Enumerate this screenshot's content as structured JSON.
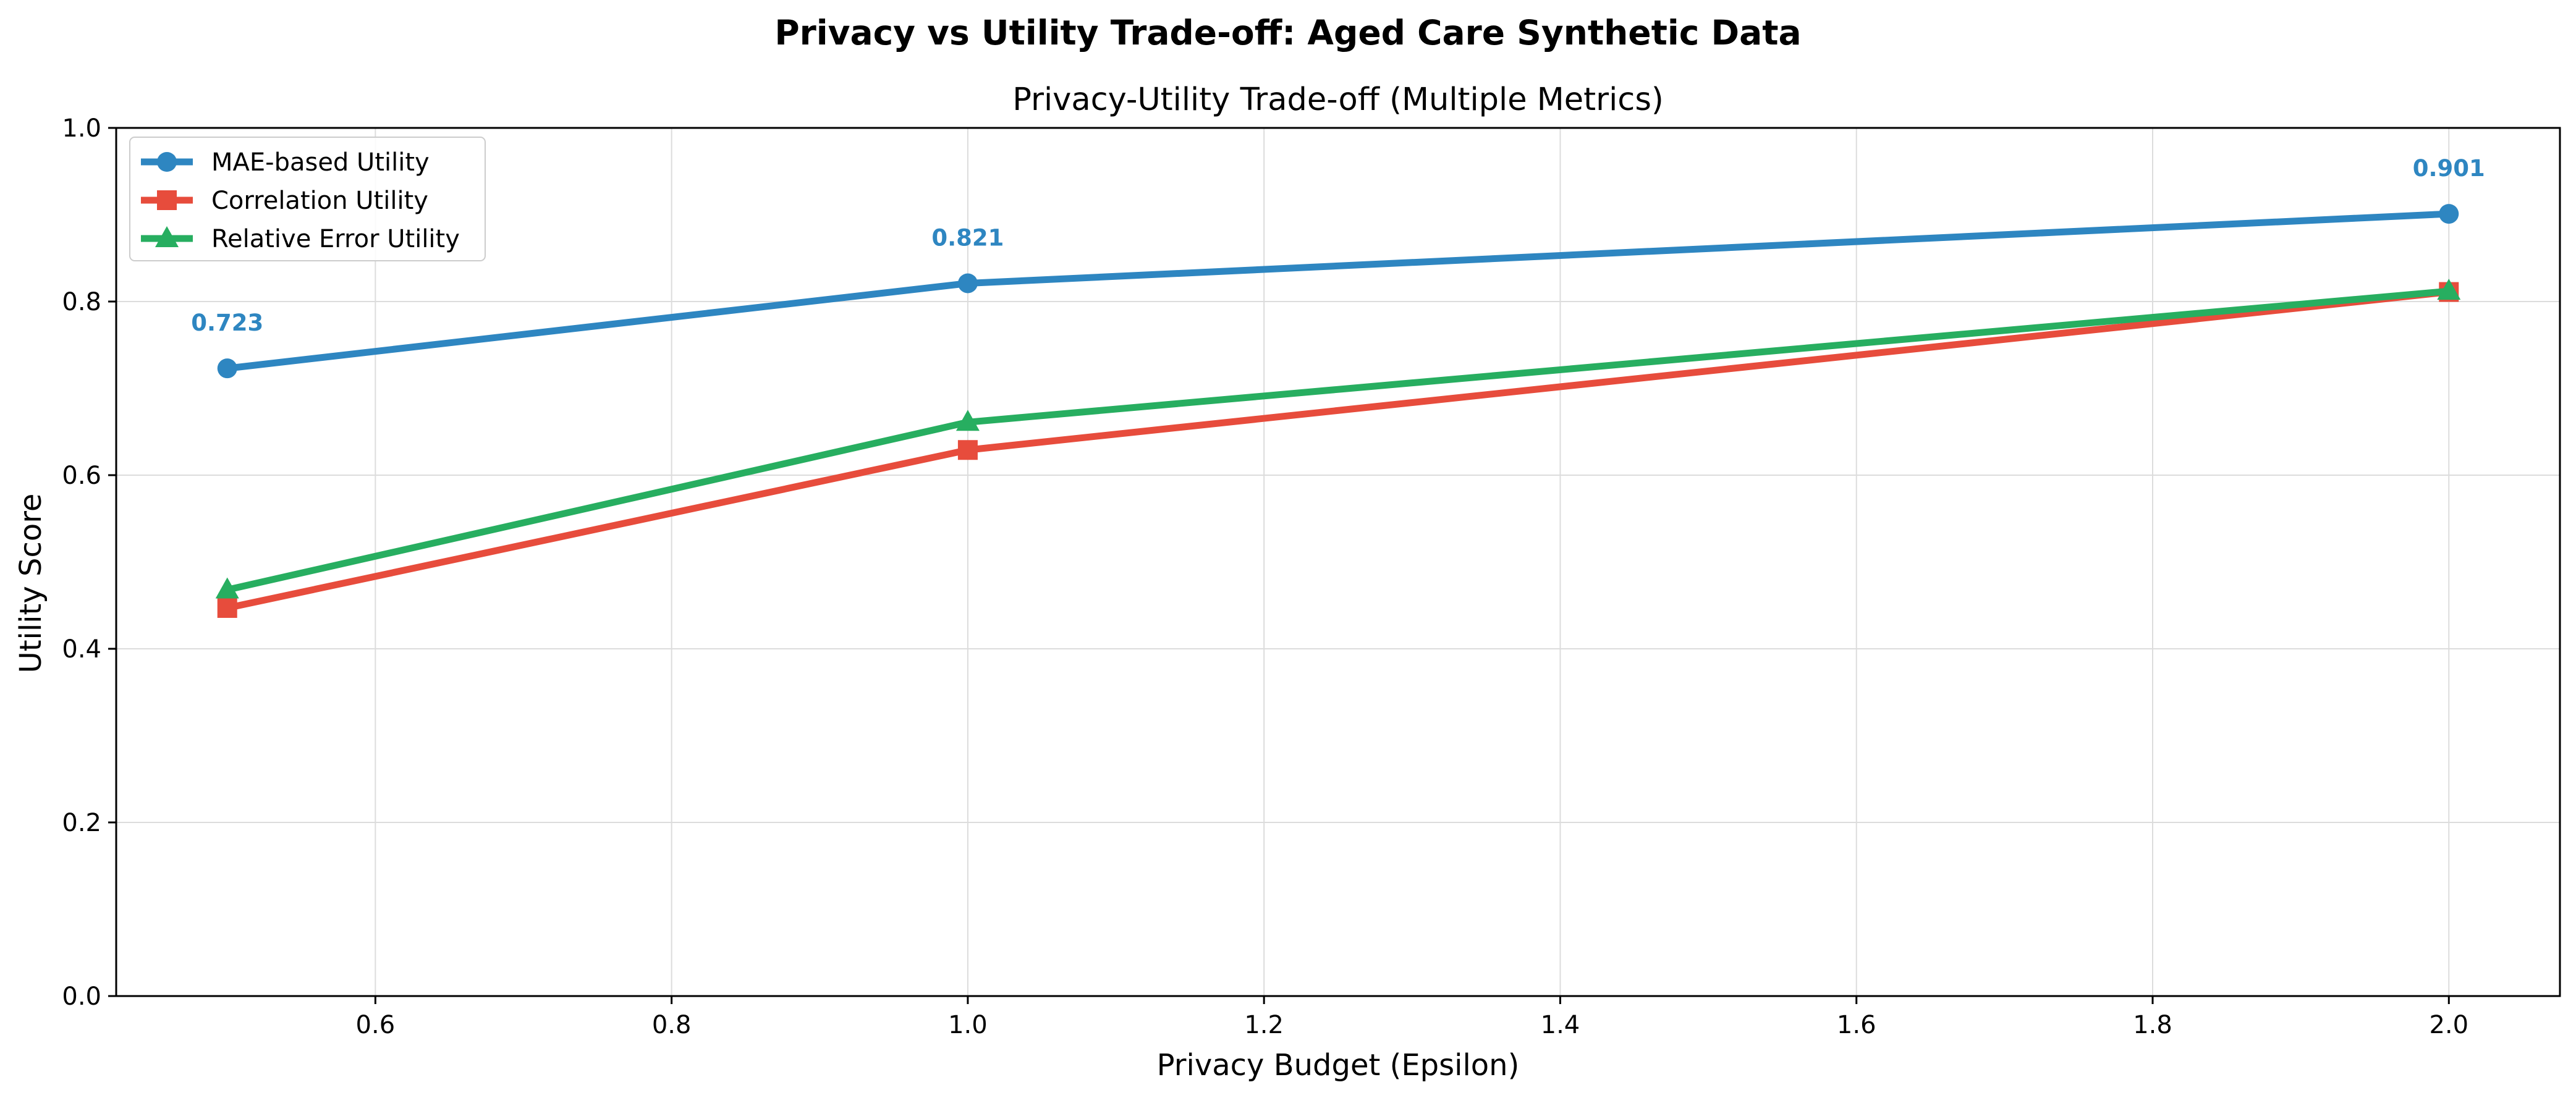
{
  "suptitle": "Privacy vs Utility Trade-off: Aged Care Synthetic Data",
  "chart_data": {
    "type": "line",
    "title": "Privacy-Utility Trade-off (Multiple Metrics)",
    "xlabel": "Privacy Budget (Epsilon)",
    "ylabel": "Utility Score",
    "x": [
      0.5,
      1.0,
      2.0
    ],
    "xlim": [
      0.425,
      2.075
    ],
    "ylim": [
      0.0,
      1.0
    ],
    "xticks": [
      0.6,
      0.8,
      1.0,
      1.2,
      1.4,
      1.6,
      1.8,
      2.0
    ],
    "xtick_labels": [
      "0.6",
      "0.8",
      "1.0",
      "1.2",
      "1.4",
      "1.6",
      "1.8",
      "2.0"
    ],
    "yticks": [
      0.0,
      0.2,
      0.4,
      0.6,
      0.8,
      1.0
    ],
    "ytick_labels": [
      "0.0",
      "0.2",
      "0.4",
      "0.6",
      "0.8",
      "1.0"
    ],
    "grid": true,
    "legend_position": "top-left",
    "series": [
      {
        "name": "MAE-based Utility",
        "values": [
          0.723,
          0.821,
          0.901
        ],
        "color": "#2e86c1",
        "marker": "circle",
        "data_labels": [
          "0.723",
          "0.821",
          "0.901"
        ]
      },
      {
        "name": "Correlation Utility",
        "values": [
          0.447,
          0.629,
          0.811
        ],
        "color": "#e74c3c",
        "marker": "square"
      },
      {
        "name": "Relative Error Utility",
        "values": [
          0.468,
          0.661,
          0.812
        ],
        "color": "#27ae60",
        "marker": "triangle"
      }
    ]
  }
}
